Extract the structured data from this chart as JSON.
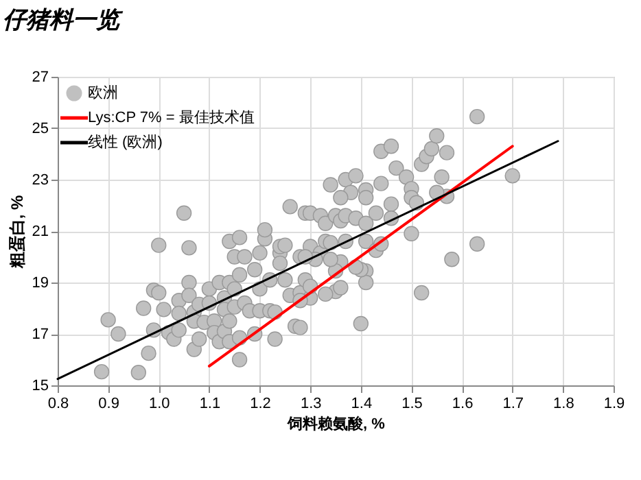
{
  "chart_data": {
    "type": "scatter",
    "title": "仔猪料一览",
    "xlabel": "饲料赖氨酸, %",
    "ylabel": "粗蛋白, %",
    "xlim": [
      0.8,
      1.9
    ],
    "xticks": [
      {
        "value": 0.8,
        "label": "0.8"
      },
      {
        "value": 0.9,
        "label": "0.9"
      },
      {
        "value": 1.0,
        "label": "1.0"
      },
      {
        "value": 1.1,
        "label": "1.1"
      },
      {
        "value": 1.2,
        "label": "1.2"
      },
      {
        "value": 1.3,
        "label": "1.3"
      },
      {
        "value": 1.4,
        "label": "1.4"
      },
      {
        "value": 1.5,
        "label": "1.5"
      },
      {
        "value": 1.6,
        "label": "1.6"
      },
      {
        "value": 1.7,
        "label": "1.7"
      },
      {
        "value": 1.8,
        "label": "1.8"
      },
      {
        "value": 1.9,
        "label": "1.9"
      }
    ],
    "ylim": [
      15,
      27
    ],
    "yticks": [
      15,
      17,
      19,
      21,
      23,
      25,
      27
    ],
    "grid": true,
    "legend": "top left",
    "series": [
      {
        "name": "欧洲",
        "marker": "circle",
        "color": "#c0c0c0",
        "x": [
          0.887,
          0.9,
          0.92,
          0.96,
          0.98,
          0.97,
          0.99,
          1.0,
          0.99,
          1.0,
          1.01,
          1.02,
          1.03,
          1.04,
          1.04,
          1.04,
          1.05,
          1.06,
          1.06,
          1.06,
          1.07,
          1.07,
          1.07,
          1.08,
          1.08,
          1.09,
          1.1,
          1.1,
          1.11,
          1.11,
          1.12,
          1.12,
          1.13,
          1.13,
          1.13,
          1.14,
          1.14,
          1.14,
          1.14,
          1.15,
          1.15,
          1.15,
          1.16,
          1.16,
          1.16,
          1.16,
          1.17,
          1.17,
          1.18,
          1.19,
          1.19,
          1.2,
          1.2,
          1.2,
          1.21,
          1.21,
          1.22,
          1.22,
          1.23,
          1.23,
          1.24,
          1.24,
          1.25,
          1.24,
          1.25,
          1.26,
          1.26,
          1.27,
          1.28,
          1.28,
          1.29,
          1.29,
          1.3,
          1.3,
          1.3,
          1.32,
          1.33,
          1.34,
          1.35,
          1.36,
          1.37,
          1.37,
          1.38,
          1.39,
          1.39,
          1.36,
          1.41,
          1.41,
          1.44,
          1.46,
          1.47,
          1.49,
          1.5,
          1.5,
          1.51,
          1.52,
          1.53,
          1.54,
          1.55,
          1.56,
          1.57,
          1.57,
          1.55,
          1.63,
          1.7,
          1.63,
          1.58,
          1.52,
          1.5,
          1.4,
          1.28,
          1.43,
          1.44,
          1.46,
          1.46,
          1.41,
          1.41,
          1.41,
          1.41,
          1.4,
          1.37,
          1.36,
          1.35,
          1.35,
          1.36,
          1.33,
          1.32,
          1.31,
          1.29,
          1.3,
          1.33,
          1.34,
          1.43,
          1.44,
          1.39,
          1.34,
          1.28
        ],
        "values": [
          15.53,
          17.55,
          17.0,
          15.5,
          16.25,
          18.0,
          18.7,
          18.6,
          17.15,
          20.45,
          17.95,
          17.05,
          16.8,
          18.3,
          17.8,
          17.15,
          21.7,
          20.35,
          19.0,
          18.5,
          17.85,
          17.5,
          16.4,
          16.8,
          18.15,
          17.45,
          18.75,
          18.2,
          17.5,
          17.05,
          19.0,
          16.7,
          18.4,
          17.95,
          17.1,
          20.6,
          19.0,
          17.5,
          16.7,
          20.0,
          18.75,
          18.05,
          20.75,
          16.0,
          16.85,
          19.3,
          18.2,
          20.0,
          17.9,
          17.0,
          19.5,
          20.15,
          18.75,
          17.9,
          20.7,
          21.05,
          17.9,
          19.1,
          16.8,
          17.85,
          20.15,
          20.4,
          19.1,
          19.75,
          20.45,
          21.95,
          18.5,
          17.3,
          20.0,
          18.6,
          21.7,
          19.1,
          20.4,
          18.4,
          21.7,
          21.6,
          21.3,
          22.8,
          21.6,
          21.4,
          23.0,
          21.6,
          22.5,
          23.15,
          21.5,
          22.3,
          22.6,
          22.3,
          24.1,
          24.3,
          23.45,
          23.1,
          22.65,
          22.3,
          22.1,
          23.6,
          23.9,
          24.2,
          24.7,
          23.1,
          24.05,
          22.35,
          22.5,
          25.45,
          23.15,
          20.5,
          19.9,
          18.6,
          20.9,
          17.4,
          17.25,
          21.7,
          22.85,
          22.05,
          21.5,
          21.3,
          20.6,
          19.45,
          19.0,
          19.5,
          20.6,
          19.8,
          19.45,
          18.65,
          18.8,
          18.55,
          20.15,
          19.9,
          20.0,
          18.85,
          20.6,
          20.55,
          20.25,
          20.5,
          19.6,
          19.9,
          18.3
        ]
      },
      {
        "name": "Lys:CP 7% = 最佳技术值",
        "type": "line",
        "color": "#ff0000",
        "x": [
          1.1,
          1.7
        ],
        "values": [
          15.75,
          24.3
        ]
      },
      {
        "name": "线性 (欧洲)",
        "type": "line",
        "color": "#000000",
        "x": [
          0.8,
          1.79
        ],
        "values": [
          15.25,
          24.5
        ]
      }
    ]
  }
}
